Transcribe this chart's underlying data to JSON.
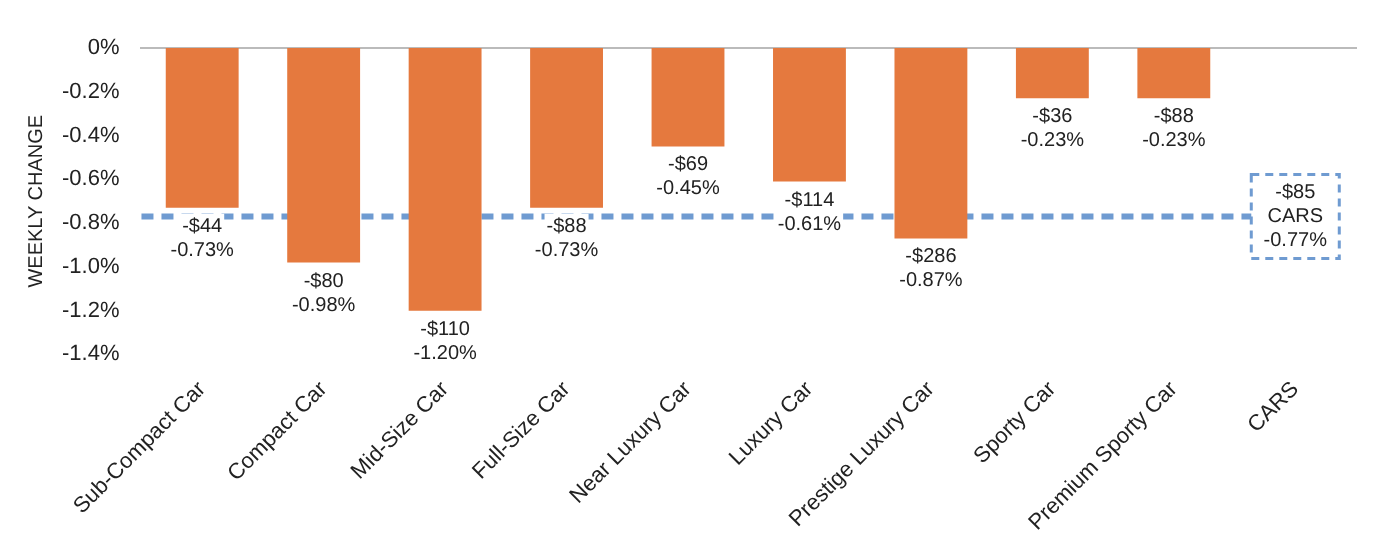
{
  "chart_data": {
    "type": "bar",
    "ylabel": "WEEKLY CHANGE",
    "categories": [
      "Sub-Compact Car",
      "Compact Car",
      "Mid-Size Car",
      "Full-Size Car",
      "Near Luxury Car",
      "Luxury Car",
      "Prestige Luxury Car",
      "Sporty Car",
      "Premium Sporty Car",
      "CARS"
    ],
    "values": [
      -0.73,
      -0.98,
      -1.2,
      -0.73,
      -0.45,
      -0.61,
      -0.87,
      -0.23,
      -0.23,
      null
    ],
    "value_labels": [
      "-$44\n-0.73%",
      "-$80\n-0.98%",
      "-$110\n-1.20%",
      "-$88\n-0.73%",
      "-$69\n-0.45%",
      "-$114\n-0.61%",
      "-$286\n-0.87%",
      "-$36\n-0.23%",
      "-$88\n-0.23%",
      null
    ],
    "color": "#e5793e",
    "ylim": [
      -1.4,
      0
    ],
    "yticks": [
      {
        "value": 0,
        "label": "0%"
      },
      {
        "value": -0.2,
        "label": "-0.2%"
      },
      {
        "value": -0.4,
        "label": "-0.4%"
      },
      {
        "value": -0.6,
        "label": "-0.6%"
      },
      {
        "value": -0.8,
        "label": "-0.8%"
      },
      {
        "value": -1,
        "label": "-1.0%"
      },
      {
        "value": -1.2,
        "label": "-1.2%"
      },
      {
        "value": -1.4,
        "label": "-1.4%"
      }
    ],
    "ref_lines": [
      {
        "axis": "y",
        "value": -0.77,
        "label": "-$85\nCARS\n-0.77%",
        "color": "#6f9bd1",
        "line_style": "dashed"
      }
    ]
  }
}
